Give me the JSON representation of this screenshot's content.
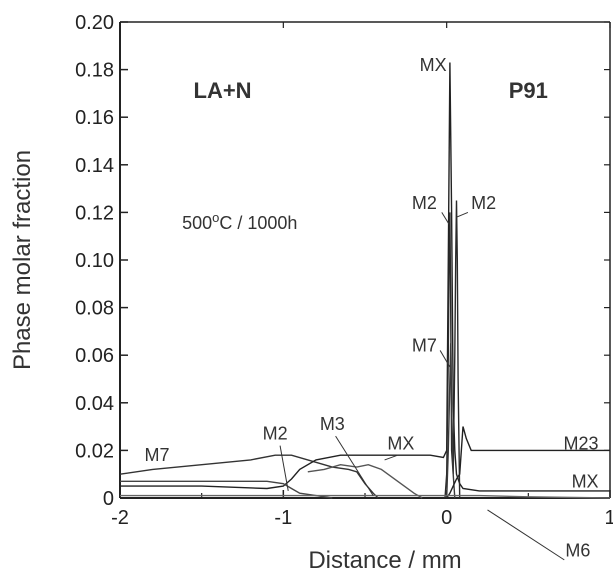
{
  "chart_data": {
    "type": "line",
    "xlabel": "Distance / mm",
    "ylabel": "Phase molar fraction",
    "xlim": [
      -2,
      1
    ],
    "ylim": [
      0,
      0.2
    ],
    "xticks": [
      -2,
      -1,
      0,
      1
    ],
    "xtick_labels": [
      "-2",
      "-1",
      "0",
      "1"
    ],
    "yticks": [
      0,
      0.02,
      0.04,
      0.06,
      0.08,
      0.1,
      0.12,
      0.14,
      0.16,
      0.18,
      0.2
    ],
    "ytick_labels": [
      "0",
      "0.02",
      "0.04",
      "0.06",
      "0.08",
      "0.10",
      "0.12",
      "0.14",
      "0.16",
      "0.18",
      "0.20"
    ],
    "grid": false,
    "region_labels": {
      "left": "LA+N",
      "right": "P91",
      "condition_prefix": "500",
      "condition_degree": "o",
      "condition_suffix": "C / 1000h"
    },
    "annotations": [
      "MX",
      "M2",
      "M2",
      "M7",
      "M7",
      "M2",
      "M3",
      "MX",
      "M23",
      "MX",
      "M6"
    ],
    "series": [
      {
        "name": "M7",
        "x": [
          -2,
          -1.8,
          -1.5,
          -1.2,
          -1.05,
          -0.95,
          -0.85,
          -0.7,
          -0.6,
          -0.55,
          -0.5,
          -0.45,
          -0.42
        ],
        "y": [
          0.01,
          0.012,
          0.014,
          0.016,
          0.018,
          0.018,
          0.016,
          0.013,
          0.012,
          0.011,
          0.006,
          0.002,
          0
        ]
      },
      {
        "name": "MX",
        "x": [
          -2,
          -1.5,
          -1.1,
          -1.0,
          -0.95,
          -0.9,
          -0.8,
          -0.65,
          -0.5,
          -0.3,
          -0.1,
          -0.02,
          0.0,
          0.01,
          0.02,
          0.03,
          0.04,
          0.05,
          0.06,
          0.08,
          0.1,
          0.2,
          0.5,
          1.0
        ],
        "y": [
          0.005,
          0.005,
          0.004,
          0.005,
          0.008,
          0.012,
          0.016,
          0.018,
          0.018,
          0.018,
          0.018,
          0.017,
          0.02,
          0.1,
          0.183,
          0.12,
          0.04,
          0.02,
          0.01,
          0.006,
          0.004,
          0.003,
          0.003,
          0.003
        ]
      },
      {
        "name": "M2",
        "x": [
          -2,
          -1.5,
          -1.1,
          -1.0,
          -0.95,
          -0.9,
          -0.8,
          -0.7
        ],
        "y": [
          0.007,
          0.007,
          0.007,
          0.006,
          0.004,
          0.002,
          0.001,
          0
        ]
      },
      {
        "name": "M3",
        "x": [
          -0.85,
          -0.75,
          -0.65,
          -0.55,
          -0.48,
          -0.4,
          -0.3,
          -0.2,
          -0.15
        ],
        "y": [
          0.011,
          0.012,
          0.014,
          0.013,
          0.014,
          0.012,
          0.007,
          0.002,
          0
        ]
      },
      {
        "name": "M2",
        "x": [
          -0.01,
          0.0,
          0.01,
          0.015,
          0.02,
          0.025,
          0.03,
          0.04,
          0.05,
          0.055,
          0.06,
          0.065,
          0.07,
          0.08
        ],
        "y": [
          0,
          0.01,
          0.06,
          0.1,
          0.12,
          0.08,
          0.02,
          0.01,
          0.06,
          0.1,
          0.125,
          0.1,
          0.05,
          0
        ]
      },
      {
        "name": "M7",
        "x": [
          0.0,
          0.01,
          0.02,
          0.025,
          0.03,
          0.04,
          0.05
        ],
        "y": [
          0,
          0.02,
          0.05,
          0.065,
          0.04,
          0.01,
          0
        ]
      },
      {
        "name": "M23",
        "x": [
          0.0,
          0.02,
          0.04,
          0.06,
          0.08,
          0.1,
          0.12,
          0.15,
          0.2,
          0.4,
          1.0
        ],
        "y": [
          0,
          0.002,
          0.005,
          0.008,
          0.01,
          0.03,
          0.025,
          0.02,
          0.02,
          0.02,
          0.02
        ]
      },
      {
        "name": "M6",
        "x": [
          -2,
          -1.0,
          0.0,
          0.2,
          0.5,
          1.0
        ],
        "y": [
          0.001,
          0.001,
          0.001,
          0.001,
          0.0005,
          0
        ]
      }
    ]
  }
}
